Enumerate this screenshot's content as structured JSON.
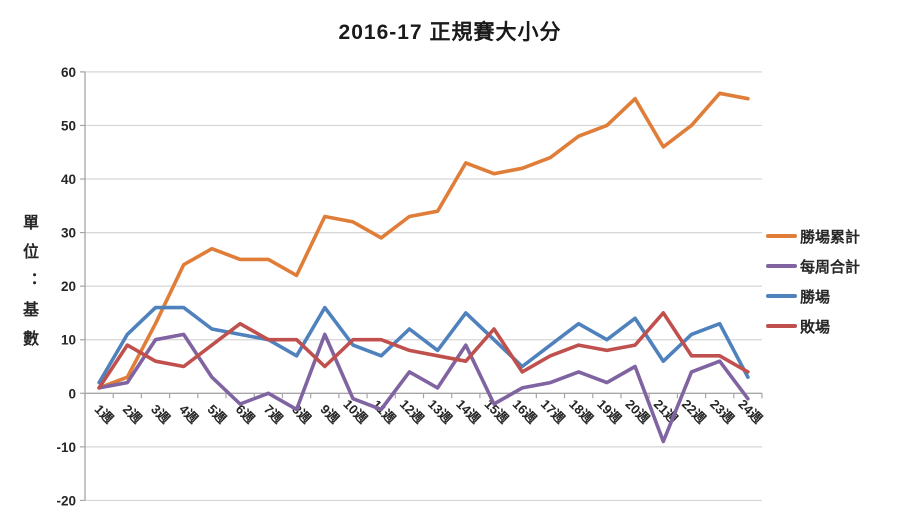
{
  "title": "2016-17 正規賽大小分",
  "chart_data": {
    "type": "line",
    "title": "2016-17 正規賽大小分",
    "ylabel": "單位：基數",
    "xlabel": "",
    "ylim": [
      -20,
      60
    ],
    "ytick_step": 10,
    "grid": true,
    "legend_position": "right",
    "categories": [
      "1週",
      "2週",
      "3週",
      "4週",
      "5週",
      "6週",
      "7週",
      "8週",
      "9週",
      "10週",
      "11週",
      "12週",
      "13週",
      "14週",
      "15週",
      "16週",
      "17週",
      "18週",
      "19週",
      "20週",
      "21週",
      "22週",
      "23週",
      "24週"
    ],
    "series": [
      {
        "name": "勝場累計",
        "color": "#E07E39",
        "values": [
          1,
          3,
          13,
          24,
          27,
          25,
          25,
          22,
          33,
          32,
          29,
          33,
          34,
          43,
          41,
          42,
          44,
          48,
          50,
          55,
          46,
          50,
          56,
          55
        ]
      },
      {
        "name": "每周合計",
        "color": "#8064A2",
        "values": [
          1,
          2,
          10,
          11,
          3,
          -2,
          0,
          -3,
          11,
          -1,
          -3,
          4,
          1,
          9,
          -2,
          1,
          2,
          4,
          2,
          5,
          -9,
          4,
          6,
          -1
        ]
      },
      {
        "name": "勝場",
        "color": "#4F81BD",
        "values": [
          2,
          11,
          16,
          16,
          12,
          11,
          10,
          7,
          16,
          9,
          7,
          12,
          8,
          15,
          10,
          5,
          9,
          13,
          10,
          14,
          6,
          11,
          13,
          3
        ]
      },
      {
        "name": "敗場",
        "color": "#C0504D",
        "values": [
          1,
          9,
          6,
          5,
          9,
          13,
          10,
          10,
          5,
          10,
          10,
          8,
          7,
          6,
          12,
          4,
          7,
          9,
          8,
          9,
          15,
          7,
          7,
          4
        ]
      }
    ],
    "grid_color": "#D6D6D6",
    "axis_color": "#A6A6A6",
    "tick_label_color": "#262626"
  }
}
